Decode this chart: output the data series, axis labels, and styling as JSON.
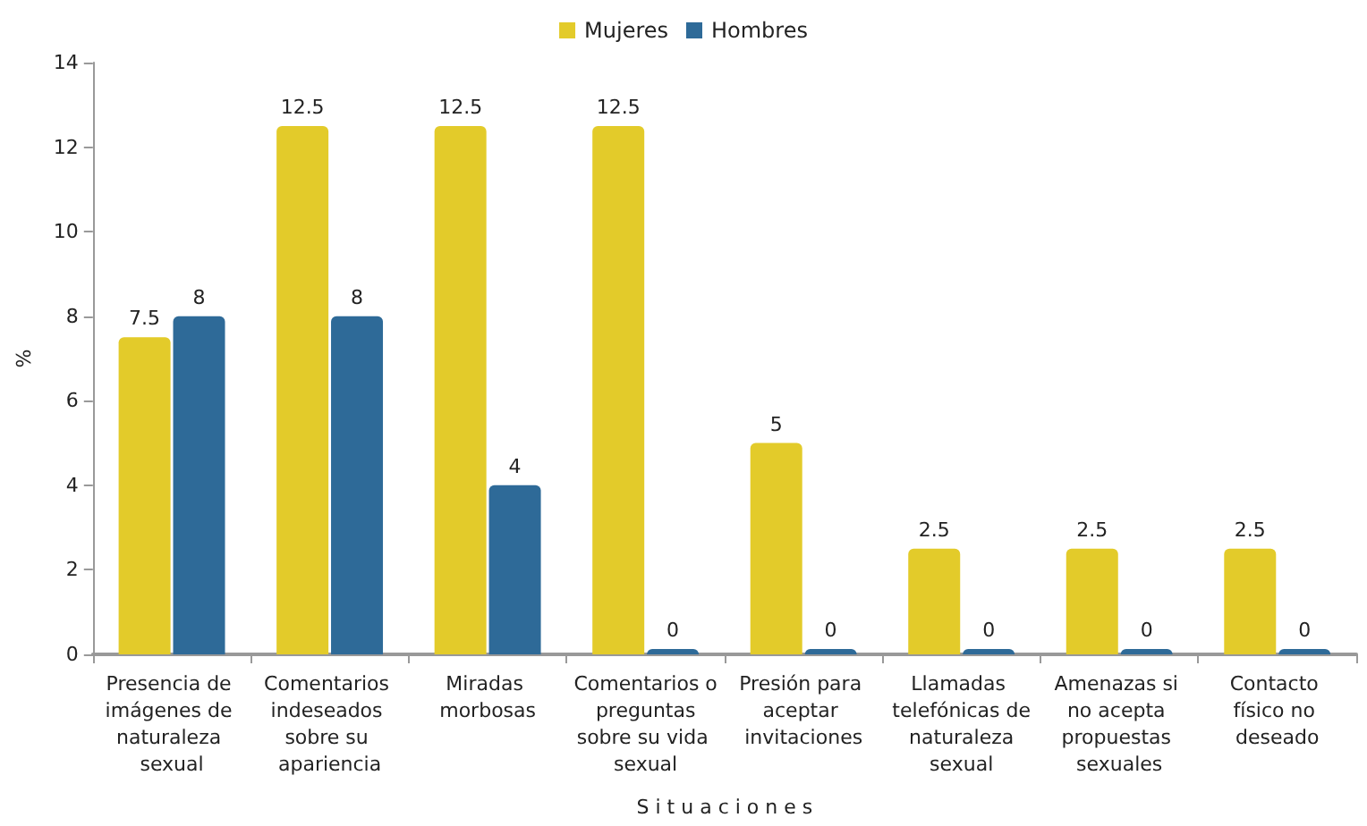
{
  "chart_data": {
    "type": "bar",
    "ylabel": "%",
    "xlabel": "S i t u a c i o n e s",
    "categories": [
      "Presencia de imágenes de naturaleza sexual",
      "Comentarios indeseados sobre su apariencia",
      "Miradas morbosas",
      "Comentarios o preguntas sobre su vida sexual",
      "Presión para aceptar invitaciones",
      "Llamadas telefónicas de naturaleza sexual",
      "Amenazas si no acepta propuestas sexuales",
      "Contacto físico no deseado"
    ],
    "series": [
      {
        "name": "Mujeres",
        "color": "#e3cb2a",
        "values": [
          7.5,
          12.5,
          12.5,
          12.5,
          5,
          2.5,
          2.5,
          2.5
        ]
      },
      {
        "name": "Hombres",
        "color": "#2e6a98",
        "values": [
          8,
          8,
          4,
          0,
          0,
          0,
          0,
          0
        ]
      }
    ],
    "ylim": [
      0,
      14
    ],
    "yticks": [
      0,
      2,
      4,
      6,
      8,
      10,
      12,
      14
    ],
    "grid": false,
    "legend": "top",
    "data_labels": true
  }
}
